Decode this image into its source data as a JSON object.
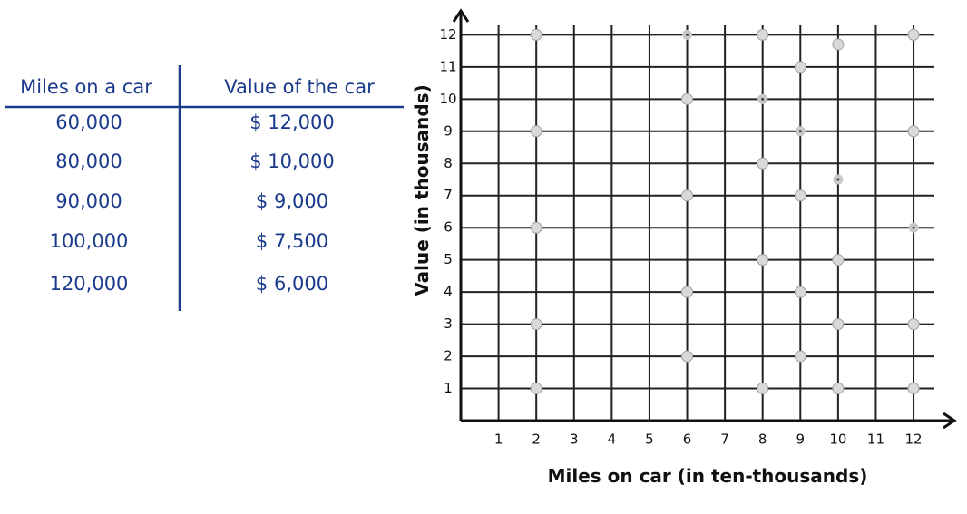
{
  "table": {
    "header": [
      "Miles on a car",
      "Value of the car"
    ],
    "rows": [
      [
        "60,000",
        "$ 12,000"
      ],
      [
        "80,000",
        "$ 10,000"
      ],
      [
        "90,000",
        "$ 9,000"
      ],
      [
        "100,000",
        "$ 7,500"
      ],
      [
        "120,000",
        "$ 6,000"
      ]
    ]
  },
  "chart_data": {
    "type": "scatter",
    "x_label": "Miles on car (in ten-thousands)",
    "y_label": "Value (in thousands)",
    "xlim": [
      0,
      12.6
    ],
    "ylim": [
      0,
      12.8
    ],
    "xticks": [
      1,
      2,
      3,
      4,
      5,
      6,
      7,
      8,
      9,
      10,
      11,
      12
    ],
    "yticks": [
      1,
      2,
      3,
      4,
      5,
      6,
      7,
      8,
      9,
      10,
      11,
      12
    ],
    "grid": true,
    "series": [
      {
        "color": "#d9d9d9",
        "x": [
          2,
          2,
          2,
          2,
          2,
          6,
          6,
          6,
          6,
          8,
          8,
          8,
          8,
          9,
          9,
          9,
          9,
          10,
          10,
          10,
          10,
          12,
          12,
          12,
          12
        ],
        "values": [
          12,
          9,
          6,
          3,
          1,
          10,
          7,
          4,
          2,
          12,
          8,
          5,
          1,
          11,
          7,
          4,
          2,
          11.7,
          5,
          3,
          1,
          12,
          9,
          3,
          1
        ]
      },
      {
        "color": "#444444",
        "x": [
          6,
          8,
          9,
          10,
          12
        ],
        "values": [
          12,
          10,
          9,
          7.5,
          6
        ]
      }
    ]
  }
}
